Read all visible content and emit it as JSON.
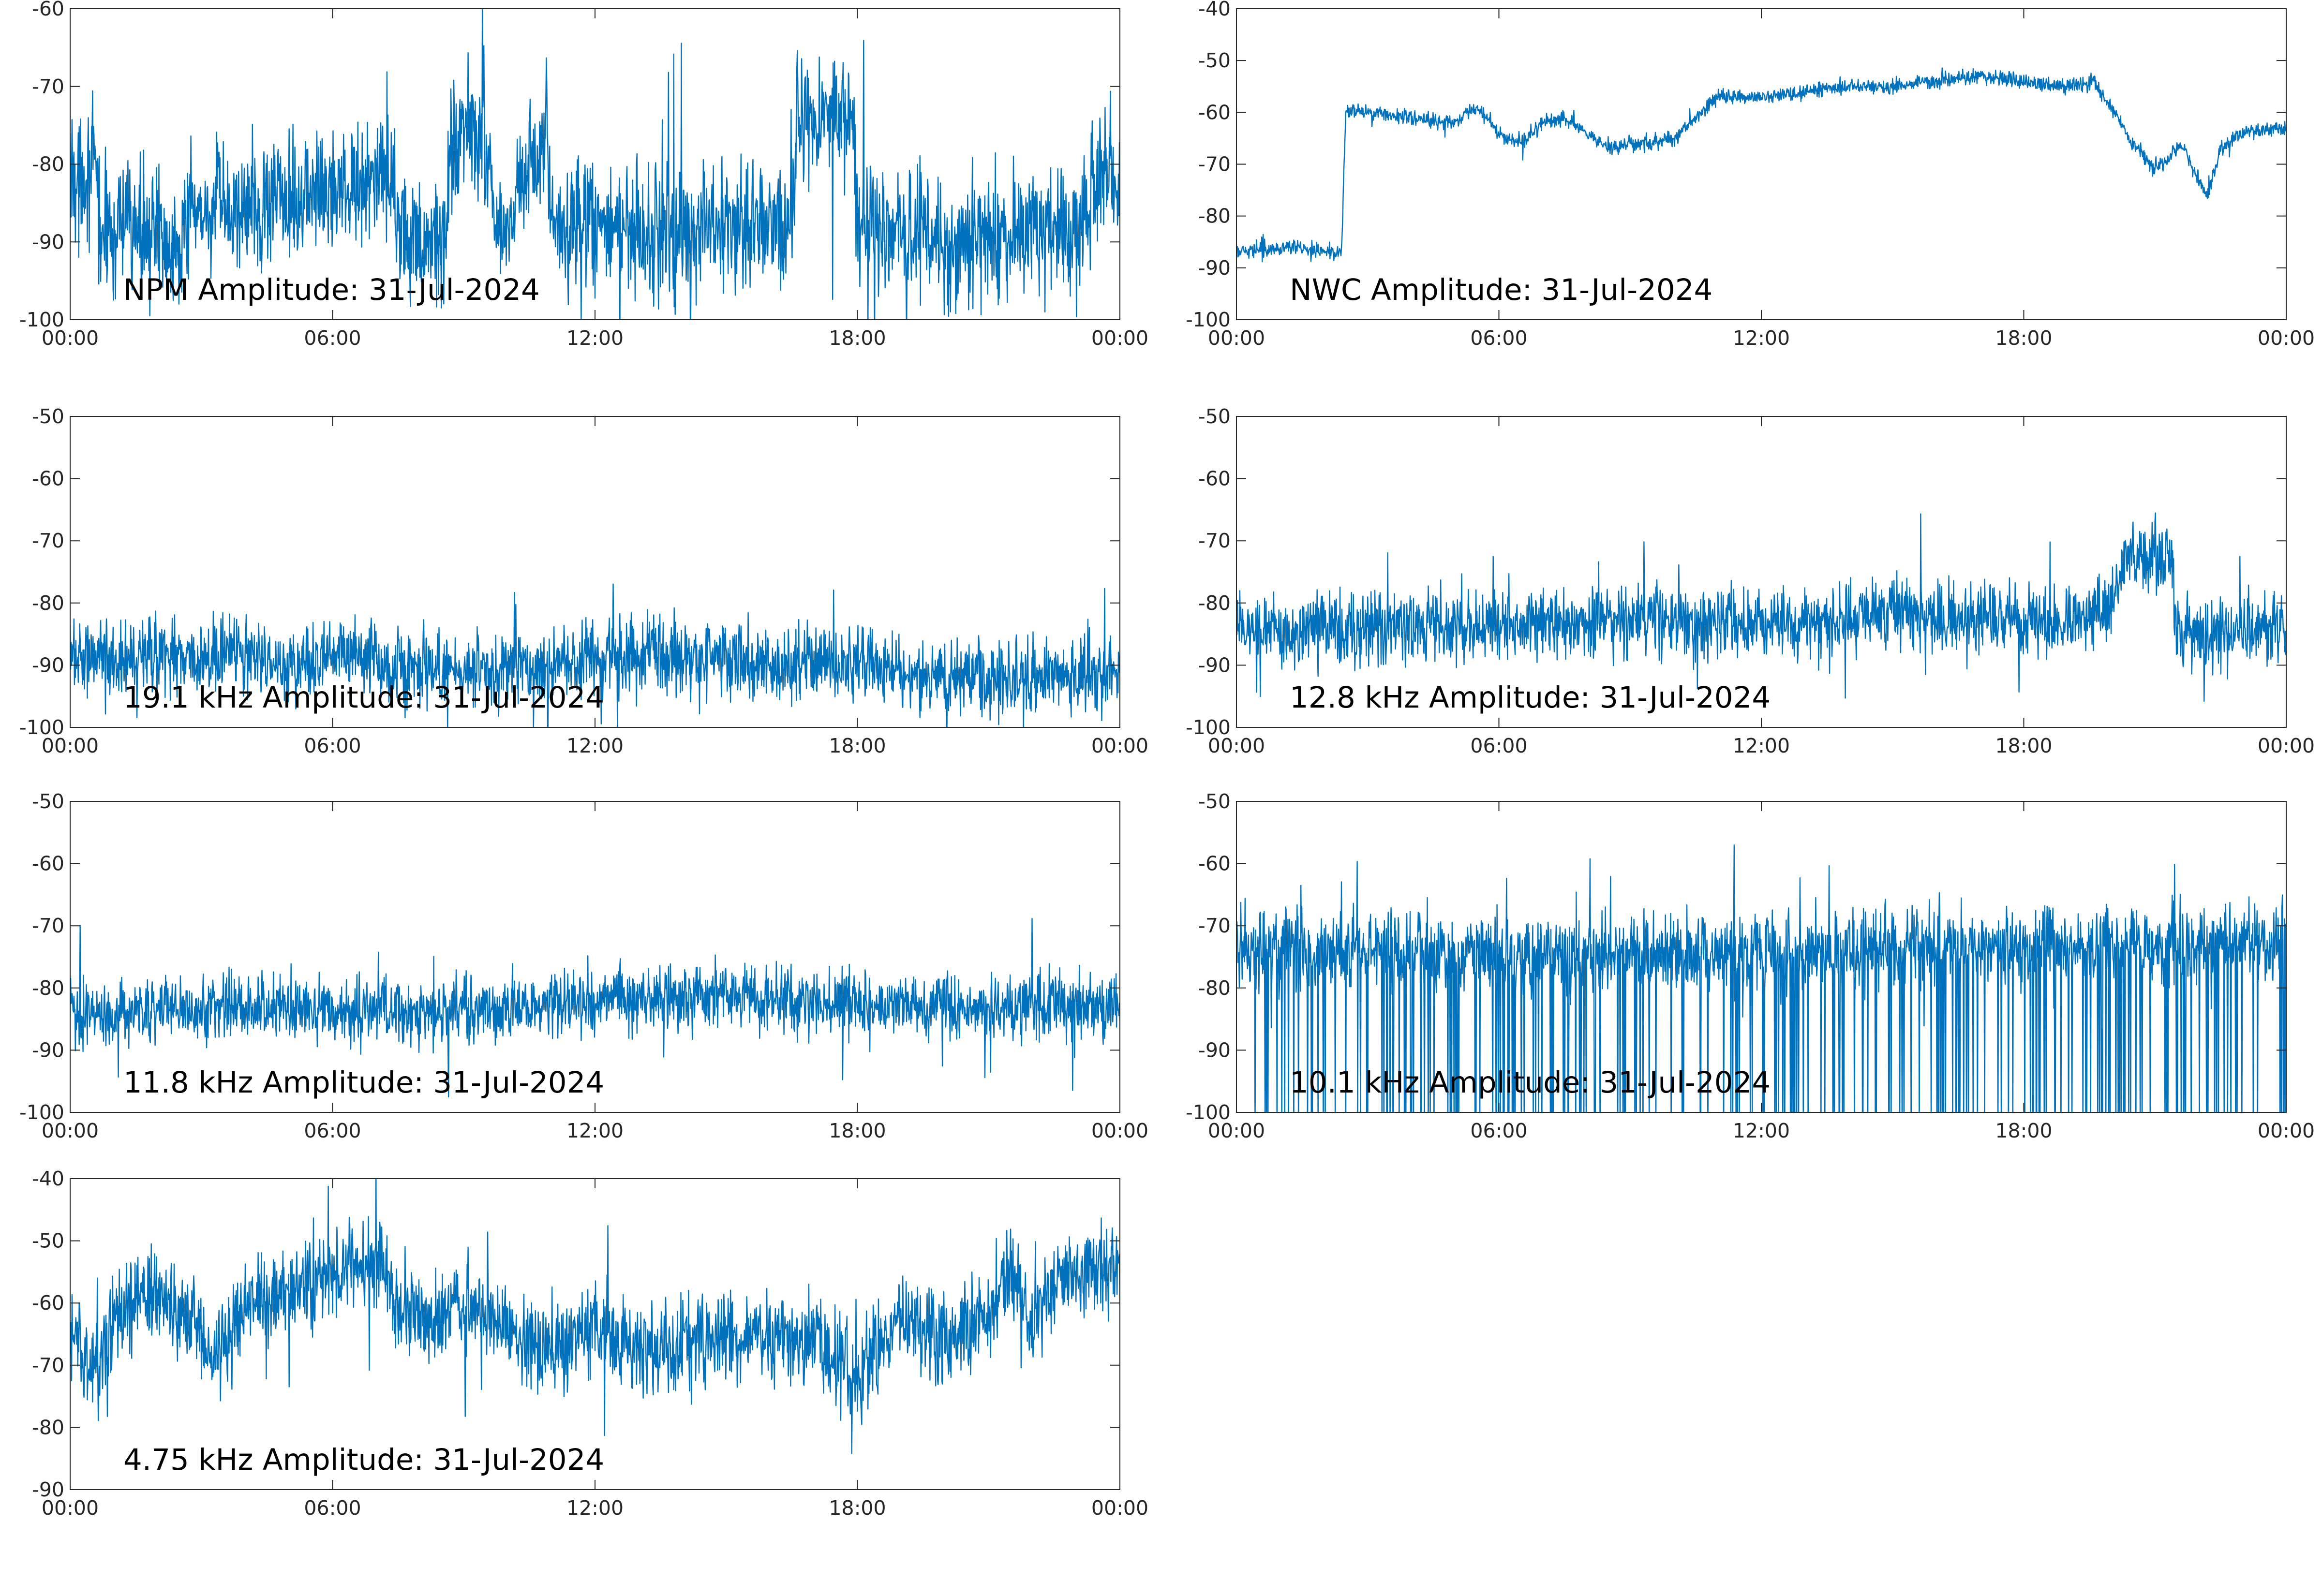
{
  "colors": {
    "series": "#0072bd",
    "axes": "#262626",
    "background": "#ffffff"
  },
  "chart_data": [
    {
      "type": "line",
      "title": "NPM Amplitude: 31-Jul-2024",
      "x_ticks": [
        "00:00",
        "06:00",
        "12:00",
        "18:00",
        "00:00"
      ],
      "xlim": [
        "00:00",
        "24:00"
      ],
      "ylim": [
        -100,
        -60
      ],
      "y_ticks": [
        -60,
        -70,
        -80,
        -90,
        -100
      ],
      "grid": false,
      "series": [
        {
          "x": [
            0,
            0.6,
            0.7,
            1.5,
            2.3,
            3.0,
            4.0,
            5.0,
            6.0,
            7.0,
            7.4,
            7.5,
            8.0,
            8.6,
            8.7,
            9.0,
            9.5,
            9.7,
            10.0,
            10.9,
            11.0,
            12.0,
            13.0,
            14.0,
            15.0,
            16.0,
            16.5,
            16.6,
            17.0,
            17.9,
            18.0,
            18.5,
            19.0,
            20.0,
            21.0,
            22.0,
            22.5,
            23.0,
            23.5,
            24.0
          ],
          "values": [
            -81,
            -81,
            -89,
            -88,
            -90,
            -86,
            -86,
            -84,
            -83,
            -82,
            -83,
            -90,
            -91,
            -90,
            -76,
            -76,
            -76,
            -87,
            -88,
            -76,
            -88,
            -88,
            -88,
            -89,
            -88,
            -88,
            -89,
            -75,
            -75,
            -75,
            -88,
            -87,
            -89,
            -90,
            -90,
            -89,
            -88,
            -90,
            -82,
            -82
          ],
          "noise": 4
        }
      ]
    },
    {
      "type": "line",
      "title": "NWC Amplitude: 31-Jul-2024",
      "x_ticks": [
        "00:00",
        "06:00",
        "12:00",
        "18:00",
        "00:00"
      ],
      "xlim": [
        "00:00",
        "24:00"
      ],
      "ylim": [
        -100,
        -40
      ],
      "y_ticks": [
        -40,
        -50,
        -60,
        -70,
        -80,
        -90,
        -100
      ],
      "grid": false,
      "series": [
        {
          "x": [
            0,
            1.0,
            2.4,
            2.5,
            3.0,
            4.0,
            5.0,
            5.4,
            5.6,
            6.0,
            6.5,
            7.0,
            7.5,
            8.0,
            8.5,
            9.0,
            9.5,
            10.0,
            10.5,
            11.0,
            12.0,
            13.0,
            14.0,
            15.0,
            16.0,
            17.0,
            18.0,
            19.0,
            19.6,
            20.0,
            20.5,
            21.0,
            21.3,
            21.6,
            22.0,
            22.2,
            22.5,
            23.0,
            24.0
          ],
          "values": [
            -87,
            -86,
            -87,
            -60,
            -60,
            -61,
            -62,
            -59,
            -60,
            -64,
            -66,
            -62,
            -61,
            -64,
            -67,
            -66,
            -66,
            -65,
            -61,
            -57,
            -57,
            -56,
            -55,
            -55,
            -54,
            -53,
            -54,
            -55,
            -54,
            -59,
            -66,
            -71,
            -69,
            -66,
            -73,
            -76,
            -67,
            -64,
            -63
          ],
          "noise": 0.7
        }
      ]
    },
    {
      "type": "line",
      "title": "19.1 kHz Amplitude: 31-Jul-2024",
      "x_ticks": [
        "00:00",
        "06:00",
        "12:00",
        "18:00",
        "00:00"
      ],
      "xlim": [
        "00:00",
        "24:00"
      ],
      "ylim": [
        -100,
        -50
      ],
      "y_ticks": [
        -50,
        -60,
        -70,
        -80,
        -90,
        -100
      ],
      "grid": false,
      "series": [
        {
          "x": [
            0,
            2.0,
            4.0,
            5.0,
            6.0,
            8.0,
            10.0,
            12.0,
            14.0,
            16.0,
            18.0,
            20.0,
            22.0,
            24.0
          ],
          "values": [
            -88,
            -89,
            -88,
            -91,
            -88,
            -91,
            -91,
            -89,
            -88,
            -90,
            -90,
            -92,
            -92,
            -91
          ],
          "noise": 3
        }
      ]
    },
    {
      "type": "line",
      "title": "12.8 kHz Amplitude: 31-Jul-2024",
      "x_ticks": [
        "00:00",
        "06:00",
        "12:00",
        "18:00",
        "00:00"
      ],
      "xlim": [
        "00:00",
        "24:00"
      ],
      "ylim": [
        -100,
        -50
      ],
      "y_ticks": [
        -50,
        -60,
        -70,
        -80,
        -90,
        -100
      ],
      "grid": false,
      "series": [
        {
          "x": [
            0,
            3.0,
            6.0,
            9.0,
            12.0,
            15.0,
            18.0,
            19.0,
            20.0,
            20.3,
            21.0,
            21.4,
            21.5,
            22.0,
            24.0
          ],
          "values": [
            -84,
            -84,
            -84,
            -83,
            -83,
            -82,
            -83,
            -83,
            -80,
            -73,
            -73,
            -73,
            -85,
            -85,
            -84
          ],
          "noise": 2.8
        }
      ]
    },
    {
      "type": "line",
      "title": "11.8 kHz Amplitude: 31-Jul-2024",
      "x_ticks": [
        "00:00",
        "06:00",
        "12:00",
        "18:00",
        "00:00"
      ],
      "xlim": [
        "00:00",
        "24:00"
      ],
      "ylim": [
        -100,
        -50
      ],
      "y_ticks": [
        -50,
        -60,
        -70,
        -80,
        -90,
        -100
      ],
      "grid": false,
      "series": [
        {
          "x": [
            0,
            4.0,
            8.0,
            12.0,
            14.0,
            16.0,
            20.0,
            24.0
          ],
          "values": [
            -84,
            -83,
            -84,
            -82,
            -81,
            -82,
            -83,
            -83
          ],
          "noise": 2.6
        }
      ]
    },
    {
      "type": "line",
      "title": "10.1 kHz Amplitude: 31-Jul-2024",
      "x_ticks": [
        "00:00",
        "06:00",
        "12:00",
        "18:00",
        "00:00"
      ],
      "xlim": [
        "00:00",
        "24:00"
      ],
      "ylim": [
        -100,
        -50
      ],
      "y_ticks": [
        -50,
        -60,
        -70,
        -80,
        -90,
        -100
      ],
      "grid": false,
      "series": [
        {
          "x": [
            0,
            4.0,
            7.0,
            8.0,
            12.0,
            18.0,
            24.0
          ],
          "values": [
            -73,
            -74,
            -75,
            -74,
            -74,
            -73,
            -73
          ],
          "noise": 3,
          "dropouts": true
        }
      ]
    },
    {
      "type": "line",
      "title": "4.75 kHz Amplitude: 31-Jul-2024",
      "x_ticks": [
        "00:00",
        "06:00",
        "12:00",
        "18:00",
        "00:00"
      ],
      "xlim": [
        "00:00",
        "24:00"
      ],
      "ylim": [
        -90,
        -40
      ],
      "y_ticks": [
        -40,
        -50,
        -60,
        -70,
        -80,
        -90
      ],
      "grid": false,
      "series": [
        {
          "x": [
            0,
            0.5,
            1.0,
            1.5,
            2.0,
            3.0,
            3.2,
            4.0,
            5.0,
            6.0,
            7.0,
            7.3,
            7.5,
            8.0,
            9.0,
            10.0,
            11.0,
            12.0,
            13.0,
            14.0,
            15.0,
            16.0,
            17.0,
            18.0,
            19.0,
            20.0,
            21.0,
            21.5,
            22.0,
            22.5,
            23.0,
            24.0
          ],
          "values": [
            -65,
            -70,
            -63,
            -60,
            -58,
            -64,
            -70,
            -60,
            -58,
            -55,
            -54,
            -55,
            -62,
            -64,
            -60,
            -64,
            -68,
            -64,
            -68,
            -66,
            -66,
            -66,
            -66,
            -72,
            -62,
            -66,
            -62,
            -55,
            -64,
            -56,
            -55,
            -55
          ],
          "noise": 3.5
        }
      ]
    }
  ]
}
